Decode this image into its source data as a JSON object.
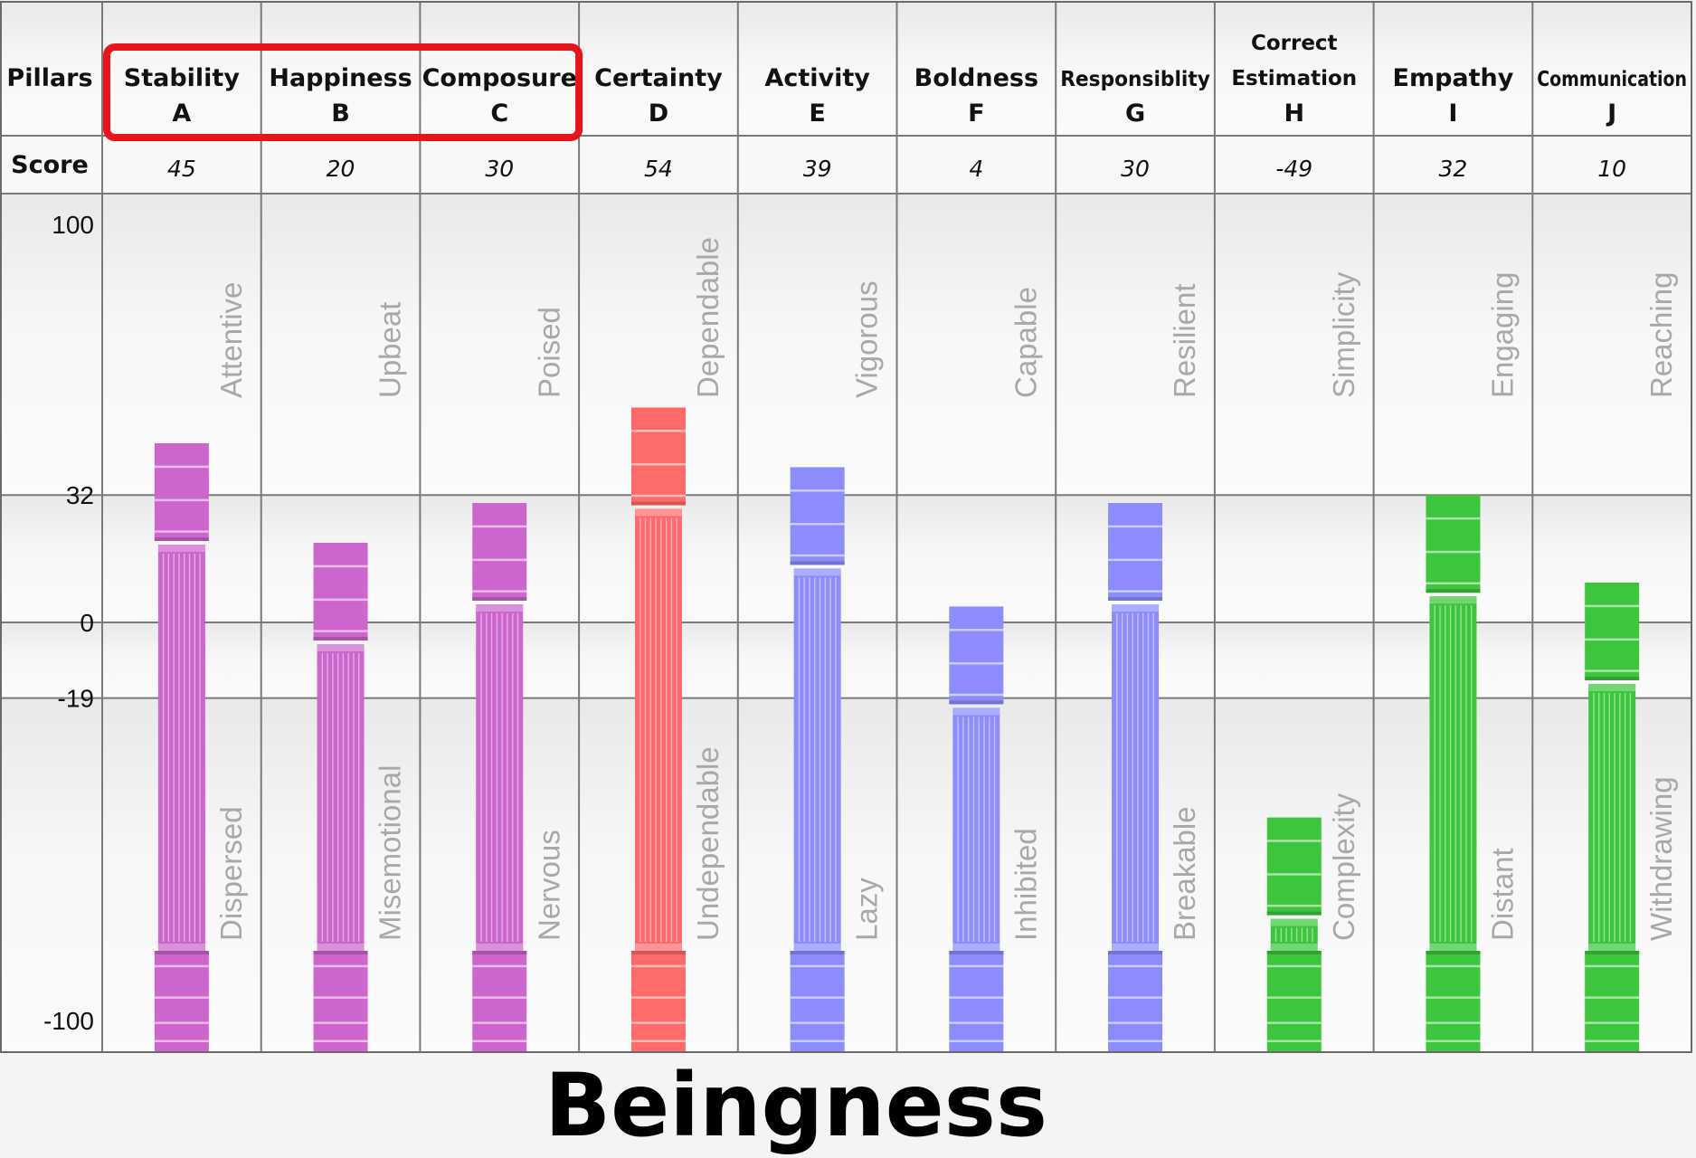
{
  "chart_data": {
    "type": "bar",
    "title": "Beingness",
    "row_labels": {
      "pillars": "Pillars",
      "score": "Score"
    },
    "yticks": [
      100,
      32,
      0,
      -19,
      -100
    ],
    "ylim": [
      -100,
      100
    ],
    "highlight_group": [
      "A",
      "B",
      "C"
    ],
    "highlight_color": "#e8141c",
    "categories": [
      {
        "letter": "A",
        "pillar": "Stability",
        "score": "45",
        "value": 45,
        "color": "#cc66cc",
        "upper_trait": "Attentive",
        "lower_trait": "Dispersed"
      },
      {
        "letter": "B",
        "pillar": "Happiness",
        "score": "20",
        "value": 20,
        "color": "#cc66cc",
        "upper_trait": "Upbeat",
        "lower_trait": "Misemotional"
      },
      {
        "letter": "C",
        "pillar": "Composure",
        "score": "30",
        "value": 30,
        "color": "#cc66cc",
        "upper_trait": "Poised",
        "lower_trait": "Nervous"
      },
      {
        "letter": "D",
        "pillar": "Certainty",
        "score": "54",
        "value": 54,
        "color": "#ff6b6b",
        "upper_trait": "Dependable",
        "lower_trait": "Undependable"
      },
      {
        "letter": "E",
        "pillar": "Activity",
        "score": "39",
        "value": 39,
        "color": "#8c8cff",
        "upper_trait": "Vigorous",
        "lower_trait": "Lazy"
      },
      {
        "letter": "F",
        "pillar": "Boldness",
        "score": "4",
        "value": 4,
        "color": "#8c8cff",
        "upper_trait": "Capable",
        "lower_trait": "Inhibited"
      },
      {
        "letter": "G",
        "pillar": "Responsiblity",
        "score": "30",
        "value": 30,
        "color": "#8c8cff",
        "upper_trait": "Resilient",
        "lower_trait": "Breakable"
      },
      {
        "letter": "H",
        "pillar": "Correct Estimation",
        "score": "-49",
        "value": -49,
        "color": "#3dc63d",
        "upper_trait": "Simplicity",
        "lower_trait": "Complexity"
      },
      {
        "letter": "I",
        "pillar": "Empathy",
        "score": "32",
        "value": 32,
        "color": "#3dc63d",
        "upper_trait": "Engaging",
        "lower_trait": "Distant"
      },
      {
        "letter": "J",
        "pillar": "Communication",
        "score": "10",
        "value": 10,
        "color": "#3dc63d",
        "upper_trait": "Reaching",
        "lower_trait": "Withdrawing"
      }
    ]
  }
}
